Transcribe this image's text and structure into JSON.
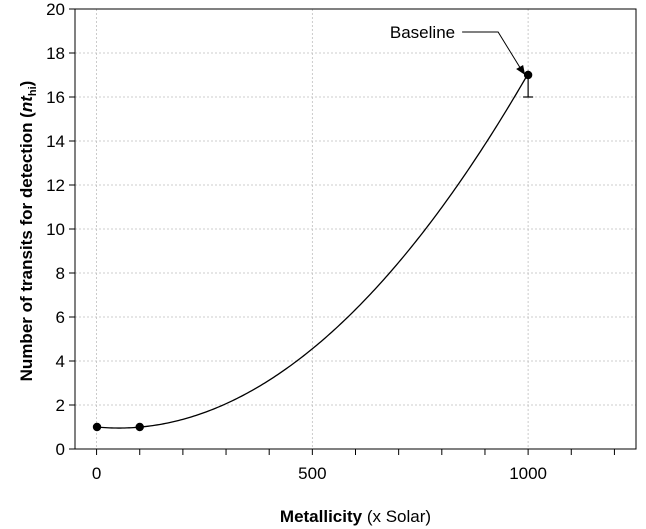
{
  "chart_data": {
    "type": "scatter",
    "xlabel_bold": "Metallicity",
    "xlabel_rest": " (x Solar)",
    "ylabel_main": "Number of transits for detection (",
    "ylabel_var": "nt",
    "ylabel_sub": "hi",
    "ylabel_close": ")",
    "xlim": [
      -50,
      1250
    ],
    "ylim": [
      0,
      20
    ],
    "x_ticks": [
      0,
      500,
      1000
    ],
    "y_ticks": [
      0,
      2,
      4,
      6,
      8,
      10,
      12,
      14,
      16,
      18,
      20
    ],
    "x_minor_ticks": [
      0,
      100,
      200,
      300,
      400,
      500,
      600,
      700,
      800,
      900,
      1000,
      1100,
      1200
    ],
    "grid": true,
    "series": [
      {
        "points": [
          {
            "x": 1,
            "y": 1
          },
          {
            "x": 100,
            "y": 1
          },
          {
            "x": 1000,
            "y": 17
          }
        ],
        "error_bar": {
          "x": 1000,
          "low": 16,
          "high": 17.2
        },
        "trendline": {
          "type": "poly2",
          "a": 1.79e-05,
          "b": -0.00184,
          "c": 1.0
        }
      }
    ],
    "annotations": [
      {
        "text": "Baseline",
        "x": 1000,
        "y": 17
      }
    ],
    "colors": {
      "points": "#000000",
      "line": "#000000",
      "grid": "#bfbfbf"
    }
  }
}
